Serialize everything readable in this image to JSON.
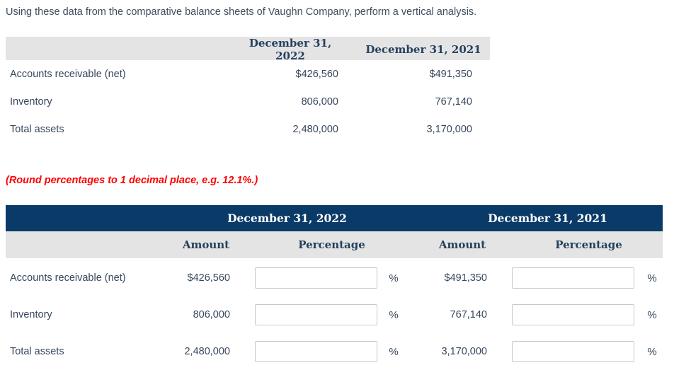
{
  "instruction": "Using these data from the comparative balance sheets of Vaughn Company, perform a vertical analysis.",
  "note": "(Round percentages to 1 decimal place, e.g. 12.1%.)",
  "percent_symbol": "%",
  "colors": {
    "header_band_navy": "#0a3a67",
    "header_band_gray": "#e4e4e4",
    "header_text_navy": "#24415e",
    "body_text": "#37475c",
    "note_red": "#fe0000"
  },
  "data_table": {
    "col_2022": "December 31, 2022",
    "col_2021": "December 31, 2021",
    "rows": [
      {
        "label": "Accounts receivable (net)",
        "v2022": "$426,560",
        "v2021": "$491,350"
      },
      {
        "label": "Inventory",
        "v2022": "806,000",
        "v2021": "767,140"
      },
      {
        "label": "Total assets",
        "v2022": "2,480,000",
        "v2021": "3,170,000"
      }
    ]
  },
  "analysis_table": {
    "group_2022": "December 31, 2022",
    "group_2021": "December 31, 2021",
    "sub_amount_2022": "Amount",
    "sub_percentage_2022": "Percentage",
    "sub_amount_2021": "Amount",
    "sub_percentage_2021": "Percentage",
    "rows": [
      {
        "label": "Accounts receivable (net)",
        "amount_2022": "$426,560",
        "pct_2022": "",
        "amount_2021": "$491,350",
        "pct_2021": ""
      },
      {
        "label": "Inventory",
        "amount_2022": "806,000",
        "pct_2022": "",
        "amount_2021": "767,140",
        "pct_2021": ""
      },
      {
        "label": "Total assets",
        "amount_2022": "2,480,000",
        "pct_2022": "",
        "amount_2021": "3,170,000",
        "pct_2021": ""
      }
    ]
  }
}
